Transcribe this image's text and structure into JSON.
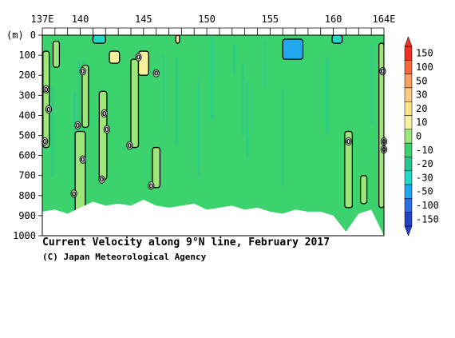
{
  "chart_data": {
    "type": "heatmap",
    "title": "Current Velocity along 9°N line, February 2017",
    "credit": "(C) Japan Meteorological Agency",
    "x_axis": {
      "min": 137,
      "max": 164,
      "ticks": [
        {
          "value": 137,
          "label": "137E"
        },
        {
          "value": 140,
          "label": "140"
        },
        {
          "value": 145,
          "label": "145"
        },
        {
          "value": 150,
          "label": "150"
        },
        {
          "value": 155,
          "label": "155"
        },
        {
          "value": 160,
          "label": "160"
        },
        {
          "value": 164,
          "label": "164E"
        }
      ]
    },
    "y_axis": {
      "unit_label": "(m)",
      "min": 0,
      "max": 1000,
      "ticks": [
        0,
        100,
        200,
        300,
        400,
        500,
        600,
        700,
        800,
        900,
        1000
      ]
    },
    "colorbar": {
      "labels": [
        "150",
        "100",
        "50",
        "30",
        "20",
        "10",
        "0",
        "-10",
        "-20",
        "-30",
        "-50",
        "-100",
        "-150"
      ],
      "colors": [
        "#f03020",
        "#f56a38",
        "#f9a060",
        "#fbc980",
        "#fbe58a",
        "#f8f09c",
        "#9ce67a",
        "#3cd36e",
        "#25c590",
        "#1fd8c8",
        "#22a8f0",
        "#2a6fe8",
        "#2442c8"
      ]
    },
    "depth_profile": [
      {
        "lon": 137.0,
        "depth": 880
      },
      {
        "lon": 138.0,
        "depth": 870
      },
      {
        "lon": 139.0,
        "depth": 890
      },
      {
        "lon": 140.0,
        "depth": 860
      },
      {
        "lon": 141.0,
        "depth": 830
      },
      {
        "lon": 142.0,
        "depth": 850
      },
      {
        "lon": 143.0,
        "depth": 840
      },
      {
        "lon": 144.0,
        "depth": 850
      },
      {
        "lon": 145.0,
        "depth": 820
      },
      {
        "lon": 146.0,
        "depth": 850
      },
      {
        "lon": 147.0,
        "depth": 860
      },
      {
        "lon": 148.0,
        "depth": 850
      },
      {
        "lon": 149.0,
        "depth": 840
      },
      {
        "lon": 150.0,
        "depth": 870
      },
      {
        "lon": 151.0,
        "depth": 860
      },
      {
        "lon": 152.0,
        "depth": 850
      },
      {
        "lon": 153.0,
        "depth": 870
      },
      {
        "lon": 154.0,
        "depth": 860
      },
      {
        "lon": 155.0,
        "depth": 880
      },
      {
        "lon": 156.0,
        "depth": 890
      },
      {
        "lon": 157.0,
        "depth": 870
      },
      {
        "lon": 158.0,
        "depth": 880
      },
      {
        "lon": 159.0,
        "depth": 880
      },
      {
        "lon": 160.0,
        "depth": 900
      },
      {
        "lon": 161.0,
        "depth": 980
      },
      {
        "lon": 162.0,
        "depth": 890
      },
      {
        "lon": 163.0,
        "depth": 870
      },
      {
        "lon": 164.0,
        "depth": 1000
      }
    ],
    "features": [
      {
        "lon": 137.3,
        "depth_top": 80,
        "depth_bottom": 560,
        "velocity": 5,
        "width": 0.5
      },
      {
        "lon": 138.1,
        "depth_top": 30,
        "depth_bottom": 160,
        "velocity": 5,
        "width": 0.5
      },
      {
        "lon": 140.0,
        "depth_top": 480,
        "depth_bottom": 880,
        "velocity": 5,
        "width": 0.8
      },
      {
        "lon": 140.4,
        "depth_top": 150,
        "depth_bottom": 460,
        "velocity": 5,
        "width": 0.5
      },
      {
        "lon": 141.8,
        "depth_top": 280,
        "depth_bottom": 720,
        "velocity": 5,
        "width": 0.6
      },
      {
        "lon": 142.7,
        "depth_top": 80,
        "depth_bottom": 140,
        "velocity": 10,
        "width": 0.8
      },
      {
        "lon": 144.3,
        "depth_top": 120,
        "depth_bottom": 560,
        "velocity": 5,
        "width": 0.6
      },
      {
        "lon": 145.0,
        "depth_top": 80,
        "depth_bottom": 200,
        "velocity": 10,
        "width": 0.8
      },
      {
        "lon": 146.0,
        "depth_top": 560,
        "depth_bottom": 760,
        "velocity": 5,
        "width": 0.6
      },
      {
        "lon": 147.7,
        "depth_top": 0,
        "depth_bottom": 40,
        "velocity": 20,
        "width": 0.3
      },
      {
        "lon": 161.2,
        "depth_top": 480,
        "depth_bottom": 860,
        "velocity": 5,
        "width": 0.6
      },
      {
        "lon": 162.4,
        "depth_top": 700,
        "depth_bottom": 840,
        "velocity": 5,
        "width": 0.5
      },
      {
        "lon": 163.8,
        "depth_top": 40,
        "depth_bottom": 860,
        "velocity": 5,
        "width": 0.4
      },
      {
        "lon": 156.8,
        "depth_top": 20,
        "depth_bottom": 120,
        "velocity": -40,
        "width": 1.6
      },
      {
        "lon": 141.5,
        "depth_top": 0,
        "depth_bottom": 40,
        "velocity": -25,
        "width": 1.0
      },
      {
        "lon": 160.3,
        "depth_top": 0,
        "depth_bottom": 40,
        "velocity": -25,
        "width": 0.8
      }
    ],
    "zero_labels": [
      {
        "lon": 137.3,
        "depth": 270,
        "text": "0"
      },
      {
        "lon": 137.5,
        "depth": 370,
        "text": "0"
      },
      {
        "lon": 137.2,
        "depth": 530,
        "text": "0"
      },
      {
        "lon": 140.2,
        "depth": 180,
        "text": "0"
      },
      {
        "lon": 139.8,
        "depth": 450,
        "text": "0"
      },
      {
        "lon": 140.2,
        "depth": 620,
        "text": "0"
      },
      {
        "lon": 139.5,
        "depth": 790,
        "text": "0"
      },
      {
        "lon": 141.7,
        "depth": 720,
        "text": "0"
      },
      {
        "lon": 141.9,
        "depth": 390,
        "text": "0"
      },
      {
        "lon": 142.1,
        "depth": 470,
        "text": "0"
      },
      {
        "lon": 144.6,
        "depth": 110,
        "text": "0"
      },
      {
        "lon": 143.9,
        "depth": 550,
        "text": "0"
      },
      {
        "lon": 145.6,
        "depth": 750,
        "text": "0"
      },
      {
        "lon": 146.0,
        "depth": 190,
        "text": "0"
      },
      {
        "lon": 161.2,
        "depth": 530,
        "text": "0"
      },
      {
        "lon": 163.9,
        "depth": 180,
        "text": "0"
      },
      {
        "lon": 164.0,
        "depth": 530,
        "text": "0"
      },
      {
        "lon": 164.0,
        "depth": 570,
        "text": "0"
      }
    ],
    "grid": false
  }
}
